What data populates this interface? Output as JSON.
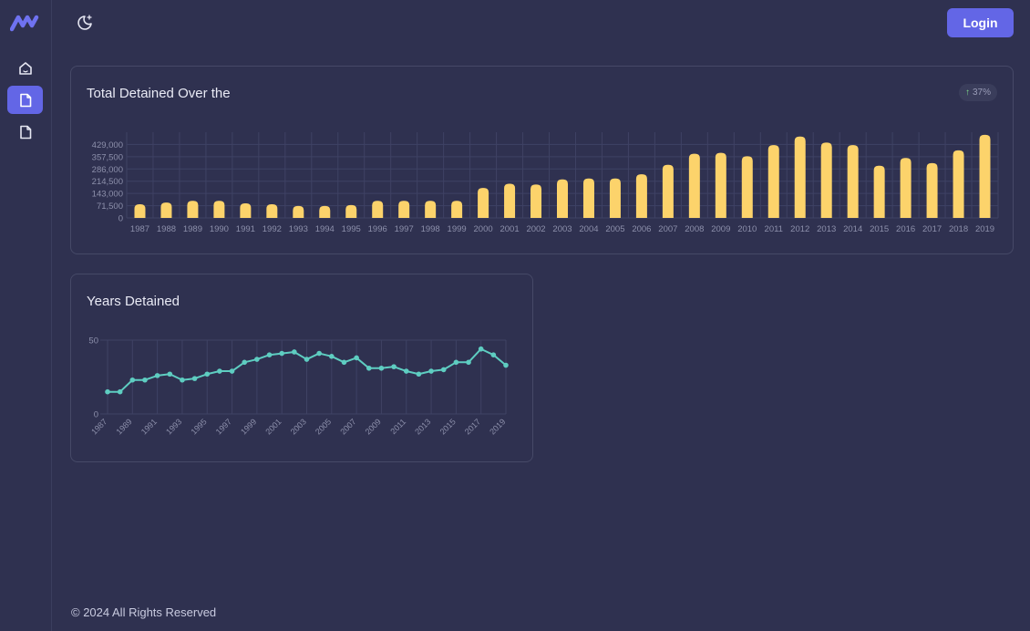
{
  "sidebar": {
    "items": [
      {
        "name": "home",
        "icon": "home-icon",
        "active": false
      },
      {
        "name": "page-1",
        "icon": "file-icon",
        "active": true
      },
      {
        "name": "page-2",
        "icon": "file-icon",
        "active": false
      }
    ]
  },
  "header": {
    "theme_icon": "moon-stars-icon",
    "login_label": "Login"
  },
  "cards": {
    "detained": {
      "title": "Total Detained Over the",
      "badge": "37%"
    },
    "years": {
      "title": "Years Detained"
    }
  },
  "footer": {
    "text": "© 2024 All Rights Reserved"
  },
  "colors": {
    "accent": "#6366e6",
    "bar": "#fcd36b",
    "line": "#5ecdc1",
    "background": "#2f3150"
  },
  "chart_data": [
    {
      "type": "bar",
      "categories": [
        "1987",
        "1988",
        "1989",
        "1990",
        "1991",
        "1992",
        "1993",
        "1994",
        "1995",
        "1996",
        "1997",
        "1998",
        "1999",
        "2000",
        "2001",
        "2002",
        "2003",
        "2004",
        "2005",
        "2006",
        "2007",
        "2008",
        "2009",
        "2010",
        "2011",
        "2012",
        "2013",
        "2014",
        "2015",
        "2016",
        "2017",
        "2018",
        "2019"
      ],
      "values": [
        80000,
        90000,
        100000,
        100000,
        85000,
        80000,
        70000,
        70000,
        75000,
        100000,
        100000,
        100000,
        100000,
        175000,
        200000,
        195000,
        225000,
        230000,
        230000,
        255000,
        310000,
        375000,
        380000,
        360000,
        425000,
        475000,
        440000,
        425000,
        305000,
        350000,
        320000,
        395000,
        485000
      ],
      "ylim": [
        0,
        500500
      ],
      "yticks": [
        "0",
        "71,500",
        "143,000",
        "214,500",
        "286,000",
        "357,500",
        "429,000"
      ],
      "ytick_values": [
        0,
        71500,
        143000,
        214500,
        286000,
        357500,
        429000
      ],
      "grid": true
    },
    {
      "type": "line",
      "x": [
        "1987",
        "1988",
        "1989",
        "1990",
        "1991",
        "1992",
        "1993",
        "1994",
        "1995",
        "1996",
        "1997",
        "1998",
        "1999",
        "2000",
        "2001",
        "2002",
        "2003",
        "2004",
        "2005",
        "2006",
        "2007",
        "2008",
        "2009",
        "2010",
        "2011",
        "2012",
        "2013",
        "2014",
        "2015",
        "2016",
        "2017",
        "2018",
        "2019"
      ],
      "xtick_labels": [
        "1987",
        "1989",
        "1991",
        "1993",
        "1995",
        "1997",
        "1999",
        "2001",
        "2003",
        "2005",
        "2007",
        "2009",
        "2011",
        "2013",
        "2015",
        "2017",
        "2019"
      ],
      "values": [
        15,
        15,
        23,
        23,
        26,
        27,
        23,
        24,
        27,
        29,
        29,
        35,
        37,
        40,
        41,
        42,
        37,
        41,
        39,
        35,
        38,
        31,
        31,
        32,
        29,
        27,
        29,
        30,
        35,
        35,
        44,
        40,
        33
      ],
      "ylim": [
        0,
        50
      ],
      "yticks": [
        "0",
        "50"
      ],
      "ytick_values": [
        0,
        50
      ],
      "grid": true
    }
  ]
}
